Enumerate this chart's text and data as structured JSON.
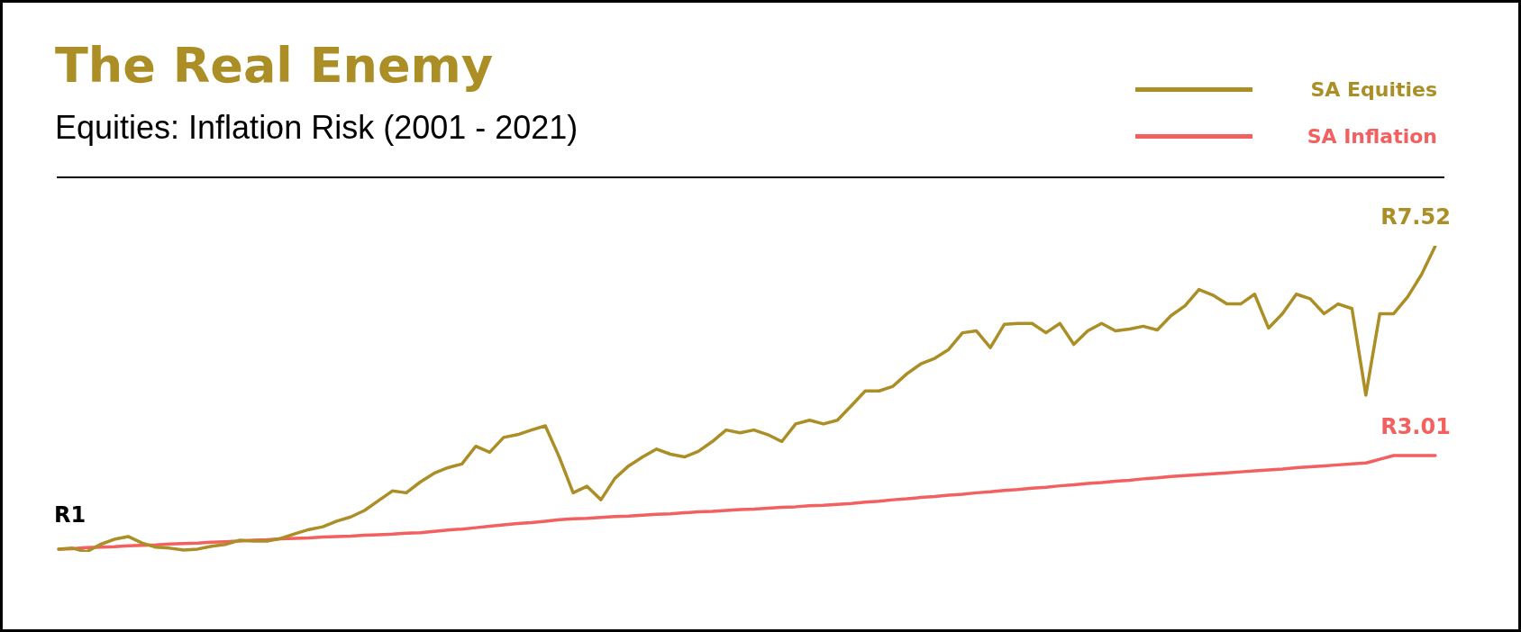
{
  "chart_data": {
    "type": "line",
    "title": "The Real Enemy",
    "subtitle": "Equities: Inflation Risk (2001 - 2021)",
    "categories": [
      null,
      null,
      null,
      null,
      null,
      null,
      null,
      null,
      null,
      null,
      null,
      null,
      null,
      null,
      null,
      null,
      null,
      null,
      null,
      null,
      null,
      null,
      null,
      null,
      null,
      null,
      null,
      null,
      null,
      null,
      null,
      null,
      null,
      null,
      null,
      null,
      null,
      null,
      null,
      null,
      null,
      null,
      null,
      null,
      null,
      null,
      null,
      null,
      null,
      null,
      null,
      null,
      null,
      null,
      null,
      null,
      null,
      null,
      null,
      null,
      null,
      null,
      null,
      null,
      null,
      null,
      null,
      null,
      null,
      null,
      null,
      null,
      null,
      null,
      null,
      null,
      null,
      null,
      null,
      null,
      null,
      null,
      null,
      null,
      null,
      null,
      null,
      null,
      null,
      null,
      null,
      null,
      null,
      null,
      null,
      null,
      null,
      null,
      null,
      null
    ],
    "series": [
      {
        "name": "SA Equities",
        "color": "#ab8e25",
        "values": [
          1.0,
          1.02,
          0.94,
          1.1,
          1.21,
          1.27,
          1.13,
          1.04,
          1.02,
          0.98,
          1.0,
          1.06,
          1.1,
          1.19,
          1.17,
          1.17,
          1.23,
          1.33,
          1.42,
          1.48,
          1.6,
          1.69,
          1.83,
          2.04,
          2.25,
          2.21,
          2.44,
          2.63,
          2.75,
          2.83,
          3.21,
          3.08,
          3.4,
          3.46,
          3.56,
          3.65,
          2.98,
          2.21,
          2.35,
          2.06,
          2.52,
          2.79,
          2.98,
          3.15,
          3.04,
          2.98,
          3.1,
          3.31,
          3.56,
          3.5,
          3.56,
          3.46,
          3.31,
          3.69,
          3.77,
          3.69,
          3.77,
          4.08,
          4.4,
          4.4,
          4.5,
          4.77,
          4.98,
          5.1,
          5.29,
          5.65,
          5.69,
          5.33,
          5.83,
          5.85,
          5.85,
          5.65,
          5.85,
          5.4,
          5.69,
          5.85,
          5.69,
          5.73,
          5.79,
          5.71,
          6.02,
          6.23,
          6.58,
          6.46,
          6.27,
          6.27,
          6.48,
          5.75,
          6.06,
          6.48,
          6.38,
          6.06,
          6.27,
          6.17,
          4.31,
          6.06,
          6.06,
          6.42,
          6.9,
          7.52
        ],
        "value_labels": [
          "R1",
          null,
          null,
          null,
          null,
          null,
          null,
          null,
          null,
          null,
          null,
          null,
          null,
          null,
          null,
          null,
          null,
          null,
          null,
          null,
          null,
          null,
          null,
          null,
          null,
          null,
          null,
          null,
          null,
          null,
          null,
          null,
          null,
          null,
          null,
          null,
          null,
          null,
          null,
          null,
          null,
          null,
          null,
          null,
          null,
          null,
          null,
          null,
          null,
          null,
          null,
          null,
          null,
          null,
          null,
          null,
          null,
          null,
          null,
          null,
          null,
          null,
          null,
          null,
          null,
          null,
          null,
          null,
          null,
          null,
          null,
          null,
          null,
          null,
          null,
          null,
          null,
          null,
          null,
          null,
          null,
          null,
          null,
          null,
          null,
          null,
          null,
          null,
          null,
          null,
          null,
          null,
          null,
          null,
          null,
          null,
          null,
          null,
          null,
          "R7.52"
        ]
      },
      {
        "name": "SA Inflation",
        "color": "#f26060",
        "values": [
          1.0,
          1.01,
          1.03,
          1.04,
          1.05,
          1.07,
          1.08,
          1.09,
          1.11,
          1.12,
          1.13,
          1.15,
          1.16,
          1.17,
          1.19,
          1.2,
          1.22,
          1.23,
          1.24,
          1.26,
          1.27,
          1.28,
          1.3,
          1.31,
          1.32,
          1.34,
          1.35,
          1.38,
          1.41,
          1.43,
          1.46,
          1.49,
          1.52,
          1.55,
          1.57,
          1.6,
          1.63,
          1.65,
          1.66,
          1.68,
          1.7,
          1.71,
          1.73,
          1.75,
          1.76,
          1.78,
          1.8,
          1.81,
          1.83,
          1.85,
          1.86,
          1.88,
          1.9,
          1.91,
          1.93,
          1.94,
          1.96,
          1.98,
          2.01,
          2.03,
          2.06,
          2.08,
          2.11,
          2.13,
          2.16,
          2.18,
          2.21,
          2.23,
          2.26,
          2.28,
          2.31,
          2.33,
          2.36,
          2.38,
          2.41,
          2.43,
          2.46,
          2.48,
          2.51,
          2.53,
          2.56,
          2.58,
          2.6,
          2.62,
          2.64,
          2.66,
          2.68,
          2.7,
          2.72,
          2.75,
          2.77,
          2.79,
          2.81,
          2.83,
          2.85,
          2.93,
          3.01,
          3.01,
          3.01,
          3.01
        ],
        "value_labels": [
          null,
          null,
          null,
          null,
          null,
          null,
          null,
          null,
          null,
          null,
          null,
          null,
          null,
          null,
          null,
          null,
          null,
          null,
          null,
          null,
          null,
          null,
          null,
          null,
          null,
          null,
          null,
          null,
          null,
          null,
          null,
          null,
          null,
          null,
          null,
          null,
          null,
          null,
          null,
          null,
          null,
          null,
          null,
          null,
          null,
          null,
          null,
          null,
          null,
          null,
          null,
          null,
          null,
          null,
          null,
          null,
          null,
          null,
          null,
          null,
          null,
          null,
          null,
          null,
          null,
          null,
          null,
          null,
          null,
          null,
          null,
          null,
          null,
          null,
          null,
          null,
          null,
          null,
          null,
          null,
          null,
          null,
          null,
          null,
          null,
          null,
          null,
          null,
          null,
          null,
          null,
          null,
          null,
          null,
          null,
          null,
          null,
          null,
          null,
          "R3.01"
        ]
      }
    ],
    "relative": false,
    "grid": false,
    "legend": "top right",
    "marker": "none",
    "line_style": "solid",
    "tick_labels": false
  }
}
